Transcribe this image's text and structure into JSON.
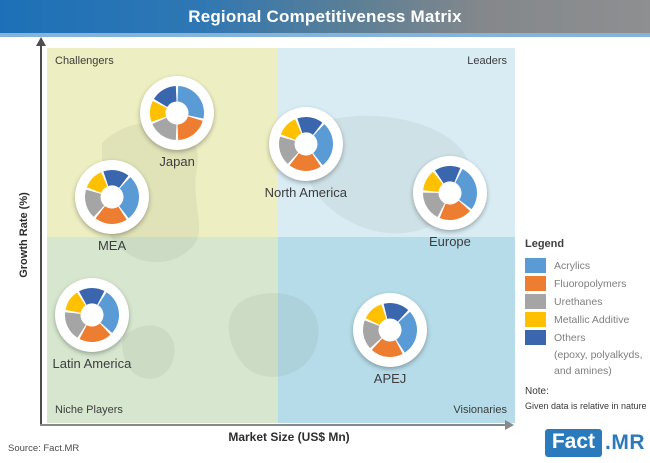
{
  "header": {
    "title": "Regional Competitiveness Matrix"
  },
  "axes": {
    "x_label": "Market Size (US$ Mn)",
    "y_label": "Growth Rate (%)"
  },
  "quadrants": {
    "top_left": {
      "label": "Challengers",
      "color": "#EDEEC1"
    },
    "top_right": {
      "label": "Leaders",
      "color": "#D9ECF4"
    },
    "bottom_left": {
      "label": "Niche Players",
      "color": "#D7E7CF"
    },
    "bottom_right": {
      "label": "Visionaries",
      "color": "#B6DCE9"
    }
  },
  "legend": {
    "title": "Legend",
    "items": [
      {
        "key": "acrylics",
        "label": "Acrylics",
        "color": "#5B9BD5"
      },
      {
        "key": "fluoropolymers",
        "label": "Fluoropolymers",
        "color": "#ED7D31"
      },
      {
        "key": "urethanes",
        "label": "Urethanes",
        "color": "#A5A5A5"
      },
      {
        "key": "metallic_additive",
        "label": "Metallic Additive",
        "color": "#FFC000"
      },
      {
        "key": "others",
        "label": "Others",
        "color": "#3A66AE",
        "sublabel_lines": [
          "(epoxy, polyalkyds,",
          "and amines)"
        ]
      }
    ]
  },
  "note": {
    "title": "Note:",
    "text": "Given data is relative in nature"
  },
  "source": "Source: Fact.MR",
  "logo": {
    "primary": "Fact",
    "secondary": ".MR"
  },
  "chart_data": {
    "type": "scatter",
    "title": "Regional Competitiveness Matrix",
    "xlabel": "Market Size (US$ Mn)",
    "ylabel": "Growth Rate (%)",
    "axis_values_shown": false,
    "note": "Given data is relative in nature",
    "quadrant_labels": [
      "Challengers",
      "Leaders",
      "Niche Players",
      "Visionaries"
    ],
    "series_legend": [
      "Acrylics",
      "Fluoropolymers",
      "Urethanes",
      "Metallic Additive",
      "Others (epoxy, polyalkyds, and amines)"
    ],
    "series_colors": {
      "acrylics": "#5B9BD5",
      "fluoropolymers": "#ED7D31",
      "urethanes": "#A5A5A5",
      "metallic_additive": "#FFC000",
      "others": "#3A66AE"
    },
    "regions": [
      {
        "name": "Japan",
        "market_size_rel": 27.8,
        "growth_rate_rel": 82.7,
        "donut_rotation": 0,
        "shares": {
          "acrylics": 29,
          "fluoropolymers": 21,
          "urethanes": 19,
          "metallic_additive": 14,
          "others": 17
        }
      },
      {
        "name": "North America",
        "market_size_rel": 55.3,
        "growth_rate_rel": 74.4,
        "donut_rotation": 40,
        "shares": {
          "acrylics": 29,
          "fluoropolymers": 21,
          "urethanes": 19,
          "metallic_additive": 14,
          "others": 17
        }
      },
      {
        "name": "Europe",
        "market_size_rel": 86.1,
        "growth_rate_rel": 61.3,
        "donut_rotation": 25,
        "shares": {
          "acrylics": 29,
          "fluoropolymers": 21,
          "urethanes": 19,
          "metallic_additive": 14,
          "others": 17
        }
      },
      {
        "name": "MEA",
        "market_size_rel": 13.9,
        "growth_rate_rel": 60.3,
        "donut_rotation": 40,
        "shares": {
          "acrylics": 29,
          "fluoropolymers": 21,
          "urethanes": 19,
          "metallic_additive": 14,
          "others": 17
        }
      },
      {
        "name": "Latin America",
        "market_size_rel": 9.6,
        "growth_rate_rel": 28.8,
        "donut_rotation": 30,
        "shares": {
          "acrylics": 29,
          "fluoropolymers": 21,
          "urethanes": 19,
          "metallic_additive": 14,
          "others": 17
        }
      },
      {
        "name": "APEJ",
        "market_size_rel": 73.3,
        "growth_rate_rel": 24.8,
        "donut_rotation": 45,
        "shares": {
          "acrylics": 29,
          "fluoropolymers": 21,
          "urethanes": 19,
          "metallic_additive": 14,
          "others": 17
        }
      }
    ]
  }
}
